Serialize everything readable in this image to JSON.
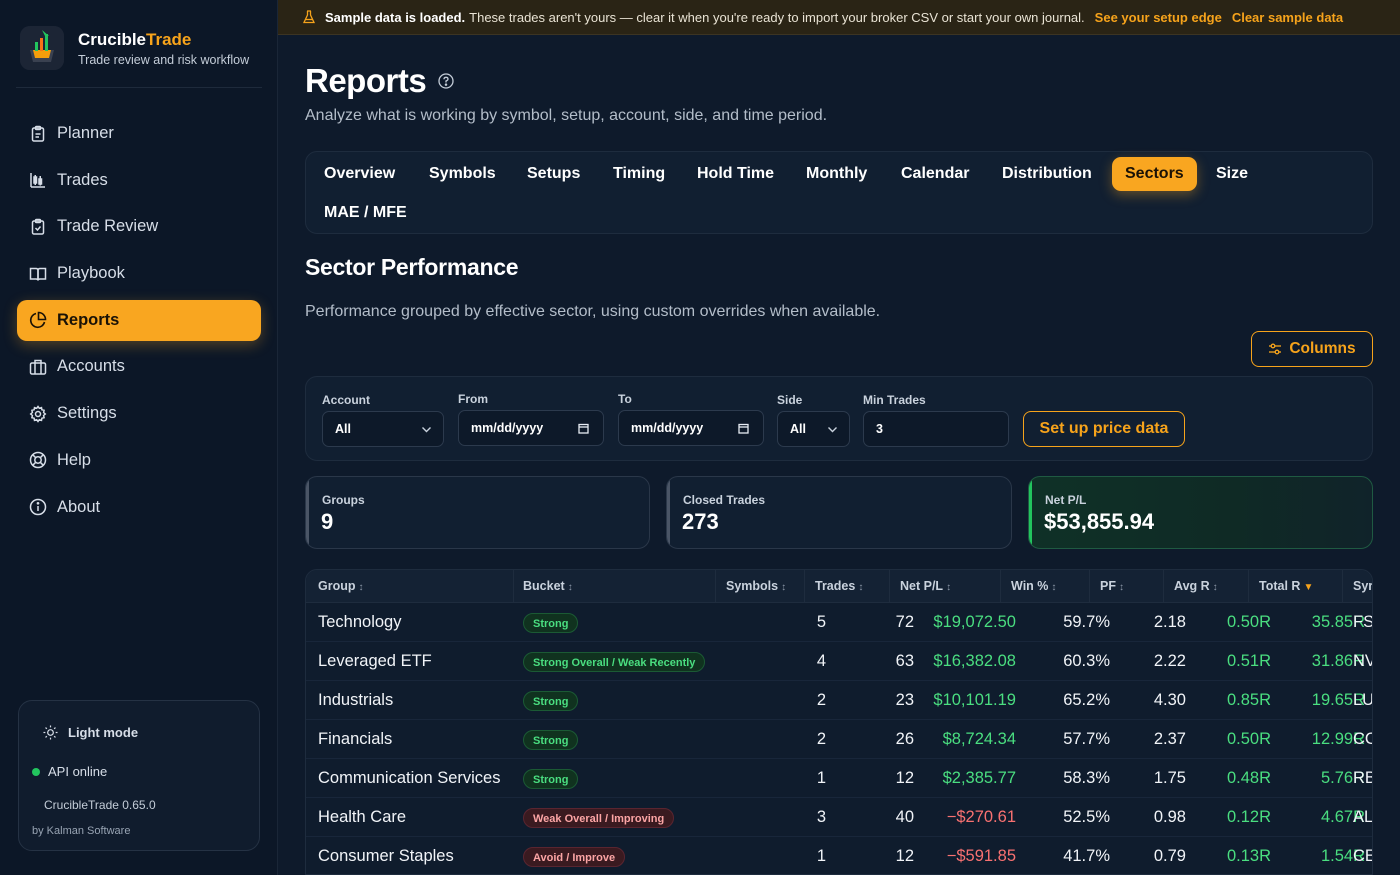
{
  "brand": {
    "name_main": "Crucible",
    "name_accent": "Trade",
    "subtitle": "Trade review and risk workflow"
  },
  "nav": [
    {
      "label": "Planner",
      "icon": "clipboard-icon",
      "active": false
    },
    {
      "label": "Trades",
      "icon": "candlestick-icon",
      "active": false
    },
    {
      "label": "Trade Review",
      "icon": "clipboard-check-icon",
      "active": false
    },
    {
      "label": "Playbook",
      "icon": "book-icon",
      "active": false
    },
    {
      "label": "Reports",
      "icon": "pie-chart-icon",
      "active": true
    },
    {
      "label": "Accounts",
      "icon": "building-icon",
      "active": false
    },
    {
      "label": "Settings",
      "icon": "gear-icon",
      "active": false
    },
    {
      "label": "Help",
      "icon": "lifebuoy-icon",
      "active": false
    },
    {
      "label": "About",
      "icon": "info-icon",
      "active": false
    }
  ],
  "footer": {
    "theme_label": "Light mode",
    "api_status": "API online",
    "version": "CrucibleTrade 0.65.0",
    "byline": "by Kalman Software"
  },
  "banner": {
    "bold": "Sample data is loaded.",
    "text": "These trades aren't yours — clear it when you're ready to import your broker CSV or start your own journal.",
    "link1": "See your setup edge",
    "link2": "Clear sample data"
  },
  "page": {
    "title": "Reports",
    "description": "Analyze what is working by symbol, setup, account, side, and time period."
  },
  "tabs": [
    "Overview",
    "Symbols",
    "Setups",
    "Timing",
    "Hold Time",
    "Monthly",
    "Calendar",
    "Distribution",
    "Sectors",
    "Size",
    "MAE / MFE"
  ],
  "active_tab": "Sectors",
  "section": {
    "title": "Sector Performance",
    "description": "Performance grouped by effective sector, using custom overrides when available."
  },
  "columns_button": "Columns",
  "filters": {
    "account": {
      "label": "Account",
      "value": "All"
    },
    "from": {
      "label": "From",
      "value": "mm/dd/yyyy"
    },
    "to": {
      "label": "To",
      "value": "mm/dd/yyyy"
    },
    "side": {
      "label": "Side",
      "value": "All"
    },
    "min_trades": {
      "label": "Min Trades",
      "value": "3"
    },
    "price_button": "Set up price data"
  },
  "stats": [
    {
      "label": "Groups",
      "value": "9"
    },
    {
      "label": "Closed Trades",
      "value": "273"
    },
    {
      "label": "Net P/L",
      "value": "$53,855.94"
    }
  ],
  "table": {
    "headers": [
      "Group",
      "Bucket",
      "Symbols",
      "Trades",
      "Net P/L",
      "Win %",
      "PF",
      "Avg R",
      "Total R",
      "Syr"
    ],
    "sorted_column": "Total R",
    "sort_direction": "desc",
    "rows": [
      {
        "group": "Technology",
        "bucket": "Strong",
        "bucket_tone": "good",
        "symbols": "5",
        "trades": "72",
        "net": "$19,072.50",
        "net_tone": "pos",
        "win": "59.7%",
        "pf": "2.18",
        "avg_r": "0.50R",
        "total_r": "35.85R",
        "sym": "FS"
      },
      {
        "group": "Leveraged ETF",
        "bucket": "Strong Overall / Weak Recently",
        "bucket_tone": "good",
        "symbols": "4",
        "trades": "63",
        "net": "$16,382.08",
        "net_tone": "pos",
        "win": "60.3%",
        "pf": "2.22",
        "avg_r": "0.51R",
        "total_r": "31.86R",
        "sym": "NV"
      },
      {
        "group": "Industrials",
        "bucket": "Strong",
        "bucket_tone": "good",
        "symbols": "2",
        "trades": "23",
        "net": "$10,101.19",
        "net_tone": "pos",
        "win": "65.2%",
        "pf": "4.30",
        "avg_r": "0.85R",
        "total_r": "19.65R",
        "sym": "LU"
      },
      {
        "group": "Financials",
        "bucket": "Strong",
        "bucket_tone": "good",
        "symbols": "2",
        "trades": "26",
        "net": "$8,724.34",
        "net_tone": "pos",
        "win": "57.7%",
        "pf": "2.37",
        "avg_r": "0.50R",
        "total_r": "12.99R",
        "sym": "CC"
      },
      {
        "group": "Communication Services",
        "bucket": "Strong",
        "bucket_tone": "good",
        "symbols": "1",
        "trades": "12",
        "net": "$2,385.77",
        "net_tone": "pos",
        "win": "58.3%",
        "pf": "1.75",
        "avg_r": "0.48R",
        "total_r": "5.76R",
        "sym": "RB"
      },
      {
        "group": "Health Care",
        "bucket": "Weak Overall / Improving",
        "bucket_tone": "bad",
        "symbols": "3",
        "trades": "40",
        "net": "−$270.61",
        "net_tone": "neg",
        "win": "52.5%",
        "pf": "0.98",
        "avg_r": "0.12R",
        "total_r": "4.67R",
        "sym": "AL"
      },
      {
        "group": "Consumer Staples",
        "bucket": "Avoid / Improve",
        "bucket_tone": "bad",
        "symbols": "1",
        "trades": "12",
        "net": "−$591.85",
        "net_tone": "neg",
        "win": "41.7%",
        "pf": "0.79",
        "avg_r": "0.13R",
        "total_r": "1.54R",
        "sym": "CE"
      }
    ]
  },
  "colors": {
    "accent": "#f9a620",
    "positive": "#4ade80",
    "negative": "#f87171",
    "background": "#0e1a2b"
  }
}
